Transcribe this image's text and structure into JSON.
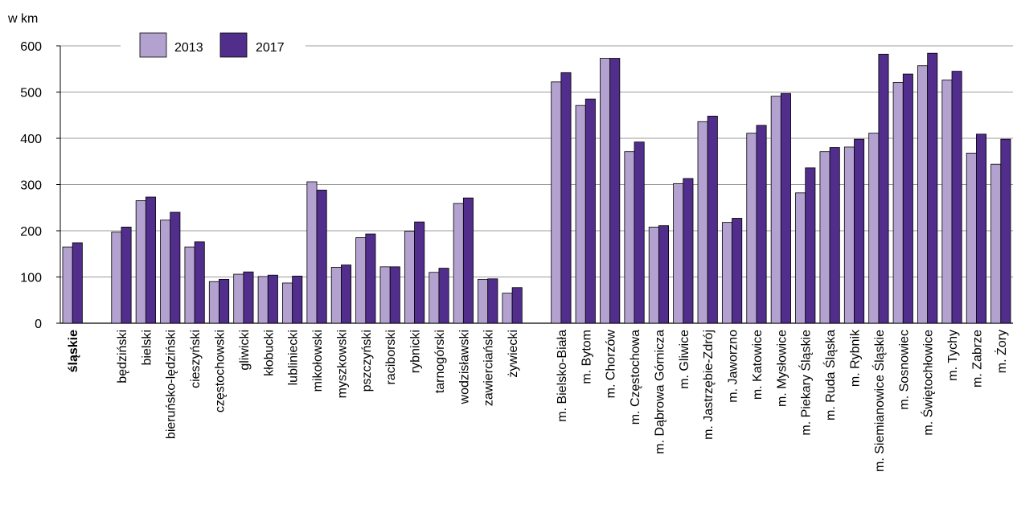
{
  "chart_data": {
    "type": "bar",
    "unit_label": "w km",
    "categories": [
      "śląskie",
      "",
      "będziński",
      "bielski",
      "bieruńsko-lędziński",
      "cieszyński",
      "częstochowski",
      "gliwicki",
      "kłobucki",
      "lubliniecki",
      "mikołowski",
      "myszkowski",
      "pszczyński",
      "raciborski",
      "rybnicki",
      "tarnogórski",
      "wodzisławski",
      "zawierciański",
      "żywiecki",
      "",
      "m. Bielsko-Biała",
      "m. Bytom",
      "m. Chorzów",
      "m. Częstochowa",
      "m. Dąbrowa Górnicza",
      "m. Gliwice",
      "m. Jastrzębie-Zdrój",
      "m. Jaworzno",
      "m. Katowice",
      "m. Mysłowice",
      "m. Piekary Śląskie",
      "m. Ruda Śląska",
      "m. Rybnik",
      "m. Siemianowice Śląskie",
      "m. Sosnowiec",
      "m. Świętochłowice",
      "m. Tychy",
      "m. Zabrze",
      "m. Żory"
    ],
    "bold_categories": [
      "śląskie"
    ],
    "series": [
      {
        "name": "2013",
        "color": "#b3a2cf",
        "values": [
          165,
          null,
          197,
          265,
          223,
          165,
          90,
          106,
          101,
          87,
          306,
          121,
          185,
          122,
          199,
          110,
          259,
          95,
          65,
          null,
          522,
          471,
          573,
          371,
          208,
          302,
          436,
          218,
          411,
          491,
          282,
          371,
          381,
          411,
          521,
          557,
          526,
          368,
          344
        ]
      },
      {
        "name": "2017",
        "color": "#512d8c",
        "values": [
          174,
          null,
          208,
          273,
          240,
          176,
          95,
          111,
          104,
          102,
          288,
          126,
          193,
          122,
          219,
          119,
          271,
          96,
          77,
          null,
          542,
          485,
          573,
          392,
          211,
          313,
          448,
          227,
          428,
          497,
          336,
          380,
          398,
          582,
          539,
          584,
          545,
          409,
          398
        ]
      }
    ],
    "ylim": [
      0,
      600
    ],
    "yticks": [
      0,
      100,
      200,
      300,
      400,
      500,
      600
    ],
    "grid": true,
    "legend_position": "top-left"
  }
}
